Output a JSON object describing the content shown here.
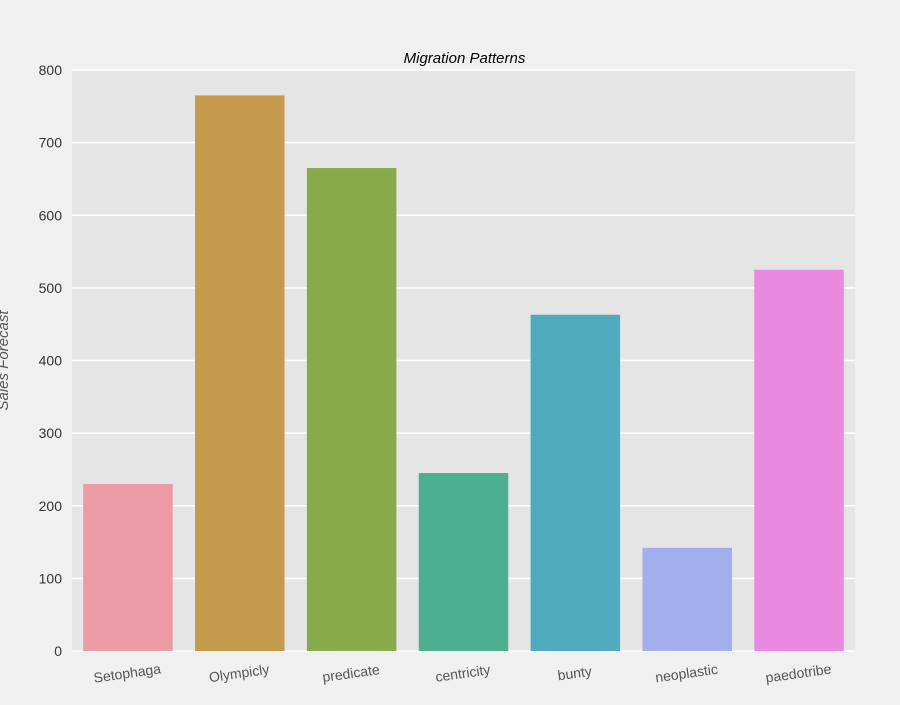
{
  "chart_data": {
    "type": "bar",
    "title": "Migration Patterns",
    "xlabel": "",
    "ylabel": "Sales Forecast",
    "categories": [
      "Setophaga",
      "Olympicly",
      "predicate",
      "centricity",
      "bunty",
      "neoplastic",
      "paedotribe"
    ],
    "values": [
      230,
      765,
      665,
      245,
      463,
      142,
      525
    ],
    "colors": [
      "#ec9aa5",
      "#c49b4c",
      "#89aa4a",
      "#4caf90",
      "#4eabbd",
      "#a3aeec",
      "#e98ae0"
    ],
    "ylim": [
      0,
      800
    ],
    "yticks": [
      0,
      100,
      200,
      300,
      400,
      500,
      600,
      700,
      800
    ],
    "grid": true,
    "plot_background": "#e5e5e5",
    "grid_color": "#ffffff"
  }
}
